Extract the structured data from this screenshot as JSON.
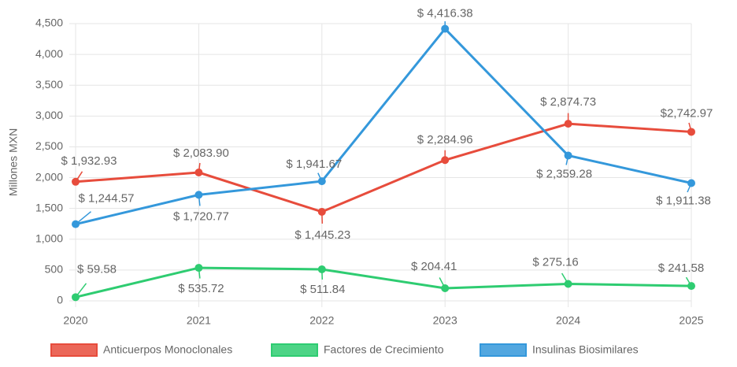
{
  "chart_data": {
    "type": "line",
    "y_label": "Millones MXN",
    "x": [
      "2020",
      "2021",
      "2022",
      "2023",
      "2024",
      "2025"
    ],
    "series": [
      {
        "name": "Anticuerpos Monoclonales",
        "color": "#e74c3c",
        "values": [
          1932.93,
          2083.9,
          1445.23,
          2284.96,
          2874.73,
          2742.97
        ],
        "value_labels": [
          "$ 1,932.93",
          "$ 2,083.90",
          "$ 1,445.23",
          "$ 2,284.96",
          "$ 2,874.73",
          "$2,742.97"
        ]
      },
      {
        "name": "Factores de Crecimiento",
        "color": "#2ecc71",
        "values": [
          59.58,
          535.72,
          511.84,
          204.41,
          275.16,
          241.58
        ],
        "value_labels": [
          "$ 59.58",
          "$ 535.72",
          "$ 511.84",
          "$ 204.41",
          "$ 275.16",
          "$ 241.58"
        ]
      },
      {
        "name": "Insulinas Biosimilares",
        "color": "#3498db",
        "values": [
          1244.57,
          1720.77,
          1941.67,
          4416.38,
          2359.28,
          1911.38
        ],
        "value_labels": [
          "$ 1,244.57",
          "$ 1,720.77",
          "$ 1,941.67",
          "$ 4,416.38",
          "$ 2,359.28",
          "$ 1,911.38"
        ]
      }
    ],
    "ylim": [
      0,
      4500
    ],
    "yticks": [
      0,
      500,
      {
        "value": 1000,
        "label": "1,000"
      },
      {
        "value": 1500,
        "label": "1,500"
      },
      {
        "value": 2000,
        "label": "2,000"
      },
      {
        "value": 2500,
        "label": "2,500"
      },
      {
        "value": 3000,
        "label": "3,000"
      },
      {
        "value": 3500,
        "label": "3,500"
      },
      {
        "value": 4000,
        "label": "4,000"
      },
      {
        "value": 4500,
        "label": "4,500"
      }
    ],
    "grid": true,
    "legend": "bottom"
  }
}
